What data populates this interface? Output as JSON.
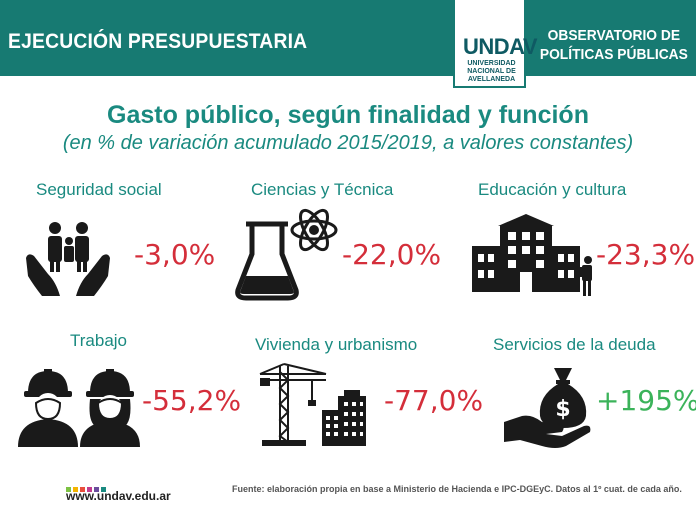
{
  "header": {
    "left_title": "EJECUCIÓN PRESUPUESTARIA",
    "right_line1": "OBSERVATORIO DE",
    "right_line2": "POLÍTICAS PÚBLICAS",
    "logo_word": "UNDAV",
    "logo_sub1": "UNIVERSIDAD",
    "logo_sub2": "NACIONAL DE",
    "logo_sub3": "AVELLANEDA"
  },
  "title": "Gasto público, según finalidad y función",
  "subtitle": "(en % de variación acumulado 2015/2019, a valores constantes)",
  "items": [
    {
      "label": "Seguridad social",
      "value": "-3,0%",
      "icon": "family-hands-icon",
      "polarity": "negative"
    },
    {
      "label": "Ciencias y Técnica",
      "value": "-22,0%",
      "icon": "flask-atom-icon",
      "polarity": "negative"
    },
    {
      "label": "Educación y cultura",
      "value": "-23,3%",
      "icon": "school-student-icon",
      "polarity": "negative"
    },
    {
      "label": "Trabajo",
      "value": "-55,2%",
      "icon": "workers-helmet-icon",
      "polarity": "negative"
    },
    {
      "label": "Vivienda y urbanismo",
      "value": "-77,0%",
      "icon": "crane-building-icon",
      "polarity": "negative"
    },
    {
      "label": "Servicios de la deuda",
      "value": "+195%",
      "icon": "money-bag-hand-icon",
      "polarity": "positive"
    }
  ],
  "colors": {
    "header_bg": "#177a72",
    "accent_teal": "#1a8a80",
    "negative_red": "#d42e3a",
    "positive_green": "#3bb35a"
  },
  "footer": {
    "website": "www.undav.edu.ar",
    "source": "Fuente: elaboración propia en base a Ministerio de Hacienda e IPC-DGEyC. Datos al 1º cuat. de cada año."
  }
}
